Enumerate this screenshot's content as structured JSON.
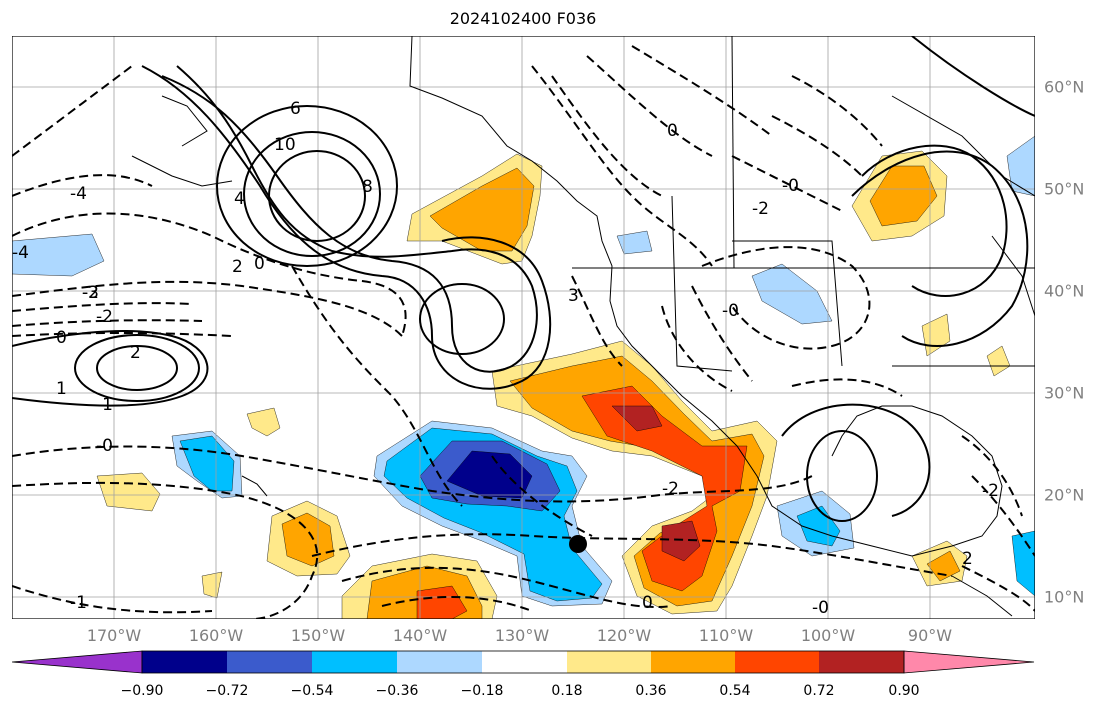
{
  "title": "2024102400 F036",
  "map": {
    "lon_labels": [
      "170°W",
      "160°W",
      "150°W",
      "140°W",
      "130°W",
      "120°W",
      "110°W",
      "100°W",
      "90°W"
    ],
    "lat_labels": [
      "10°N",
      "20°N",
      "30°N",
      "40°N",
      "50°N",
      "60°N"
    ],
    "contour_labels": [
      "10",
      "8",
      "6",
      "4",
      "2",
      "0",
      "0",
      "0",
      "-1",
      "-2",
      "-2",
      "-3",
      "-4",
      "-4",
      "2",
      "-2",
      "-1",
      "-0",
      "1",
      "-0",
      "0",
      "-0",
      "-0",
      "-2",
      "2",
      "3",
      "-2"
    ],
    "marker": "black-dot-forecast-position",
    "coast_color": "#000000",
    "grid_color": "#a0a0a0"
  },
  "colorbar": {
    "tick_labels": [
      "−0.90",
      "−0.72",
      "−0.54",
      "−0.36",
      "−0.18",
      "0.18",
      "0.36",
      "0.54",
      "0.72",
      "0.90"
    ],
    "colors": [
      "#9932cc",
      "#00008b",
      "#3b5bcc",
      "#00bfff",
      "#add8ff",
      "#ffffff",
      "#ffe98a",
      "#ffa500",
      "#ff4500",
      "#b22222",
      "#ff88aa"
    ]
  }
}
